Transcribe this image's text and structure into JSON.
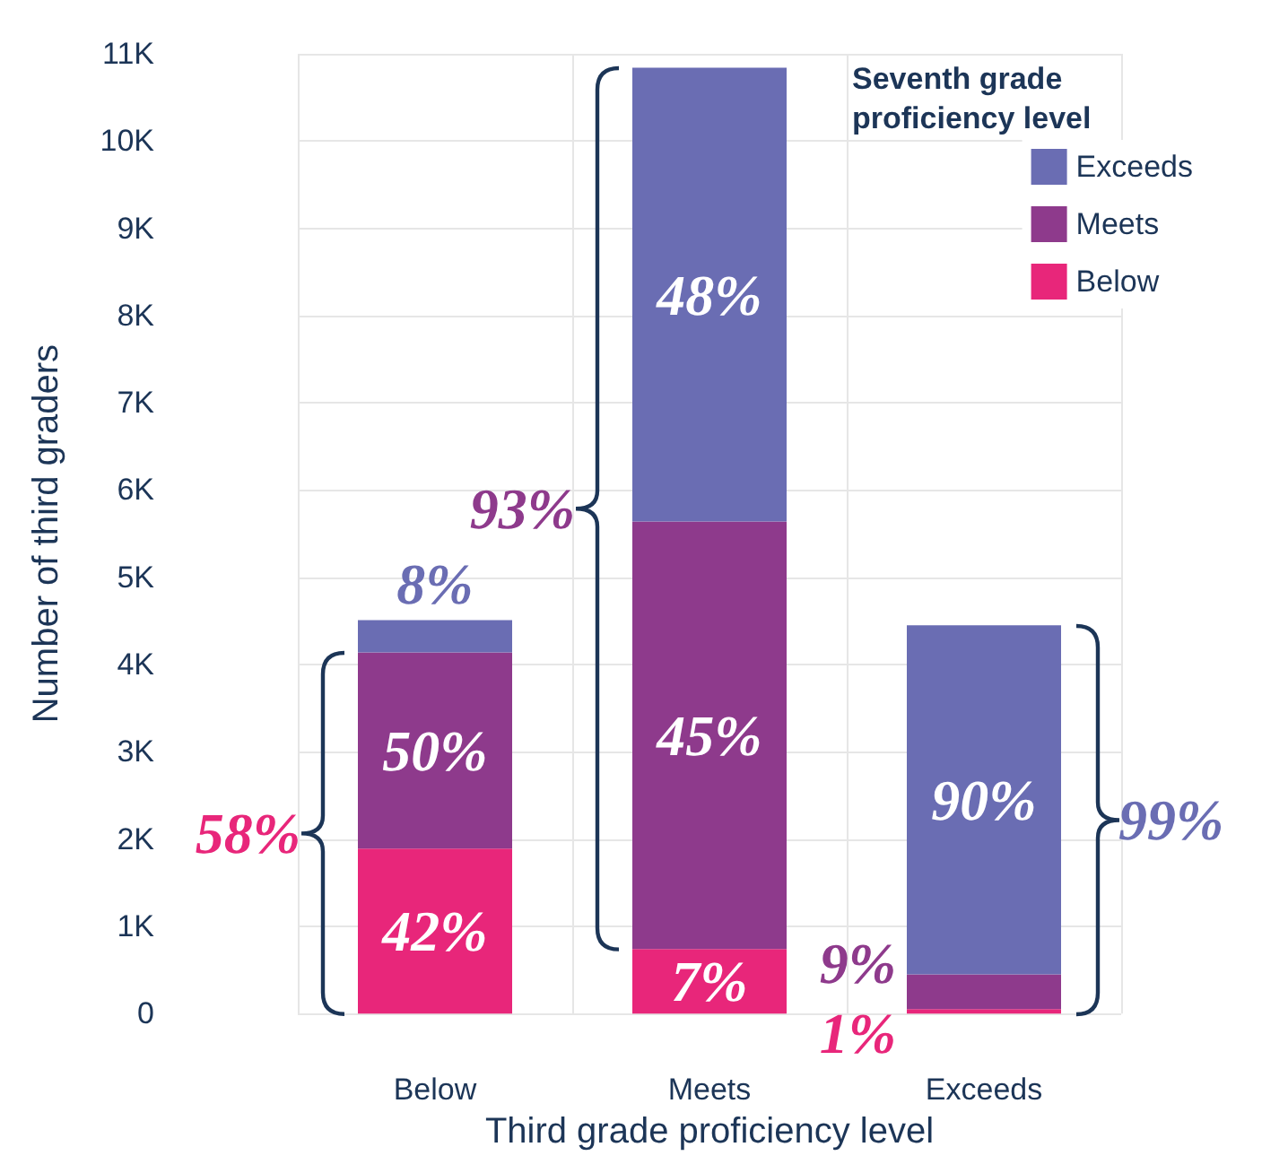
{
  "chart_data": {
    "type": "bar",
    "stacked": true,
    "xlabel": "Third grade proficiency level",
    "ylabel": "Number of third graders",
    "legend_title": "Seventh grade proficiency level",
    "legend": "top right",
    "grid": true,
    "categories": [
      "Below",
      "Meets",
      "Exceeds"
    ],
    "series": [
      {
        "name": "Below",
        "color": "#e8267a",
        "values": [
          1890,
          740,
          50
        ]
      },
      {
        "name": "Meets",
        "color": "#8e3a8c",
        "values": [
          2250,
          4900,
          400
        ]
      },
      {
        "name": "Exceeds",
        "color": "#6a6db3",
        "values": [
          370,
          5200,
          4000
        ]
      }
    ],
    "ylim": [
      0,
      11000
    ],
    "yticks": [
      0,
      {
        "value": 1000,
        "label": "1K"
      },
      {
        "value": 2000,
        "label": "2K"
      },
      {
        "value": 3000,
        "label": "3K"
      },
      {
        "value": 4000,
        "label": "4K"
      },
      {
        "value": 5000,
        "label": "5K"
      },
      {
        "value": 6000,
        "label": "6K"
      },
      {
        "value": 7000,
        "label": "7K"
      },
      {
        "value": 8000,
        "label": "8K"
      },
      {
        "value": 9000,
        "label": "9K"
      },
      {
        "value": 10000,
        "label": "10K"
      },
      {
        "value": 11000,
        "label": "11K"
      }
    ],
    "annotations": [
      "42%",
      "7%",
      "1%",
      "50%",
      "45%",
      "9%",
      "8%",
      "48%",
      "90%",
      "58%",
      "93%",
      "99%"
    ]
  }
}
